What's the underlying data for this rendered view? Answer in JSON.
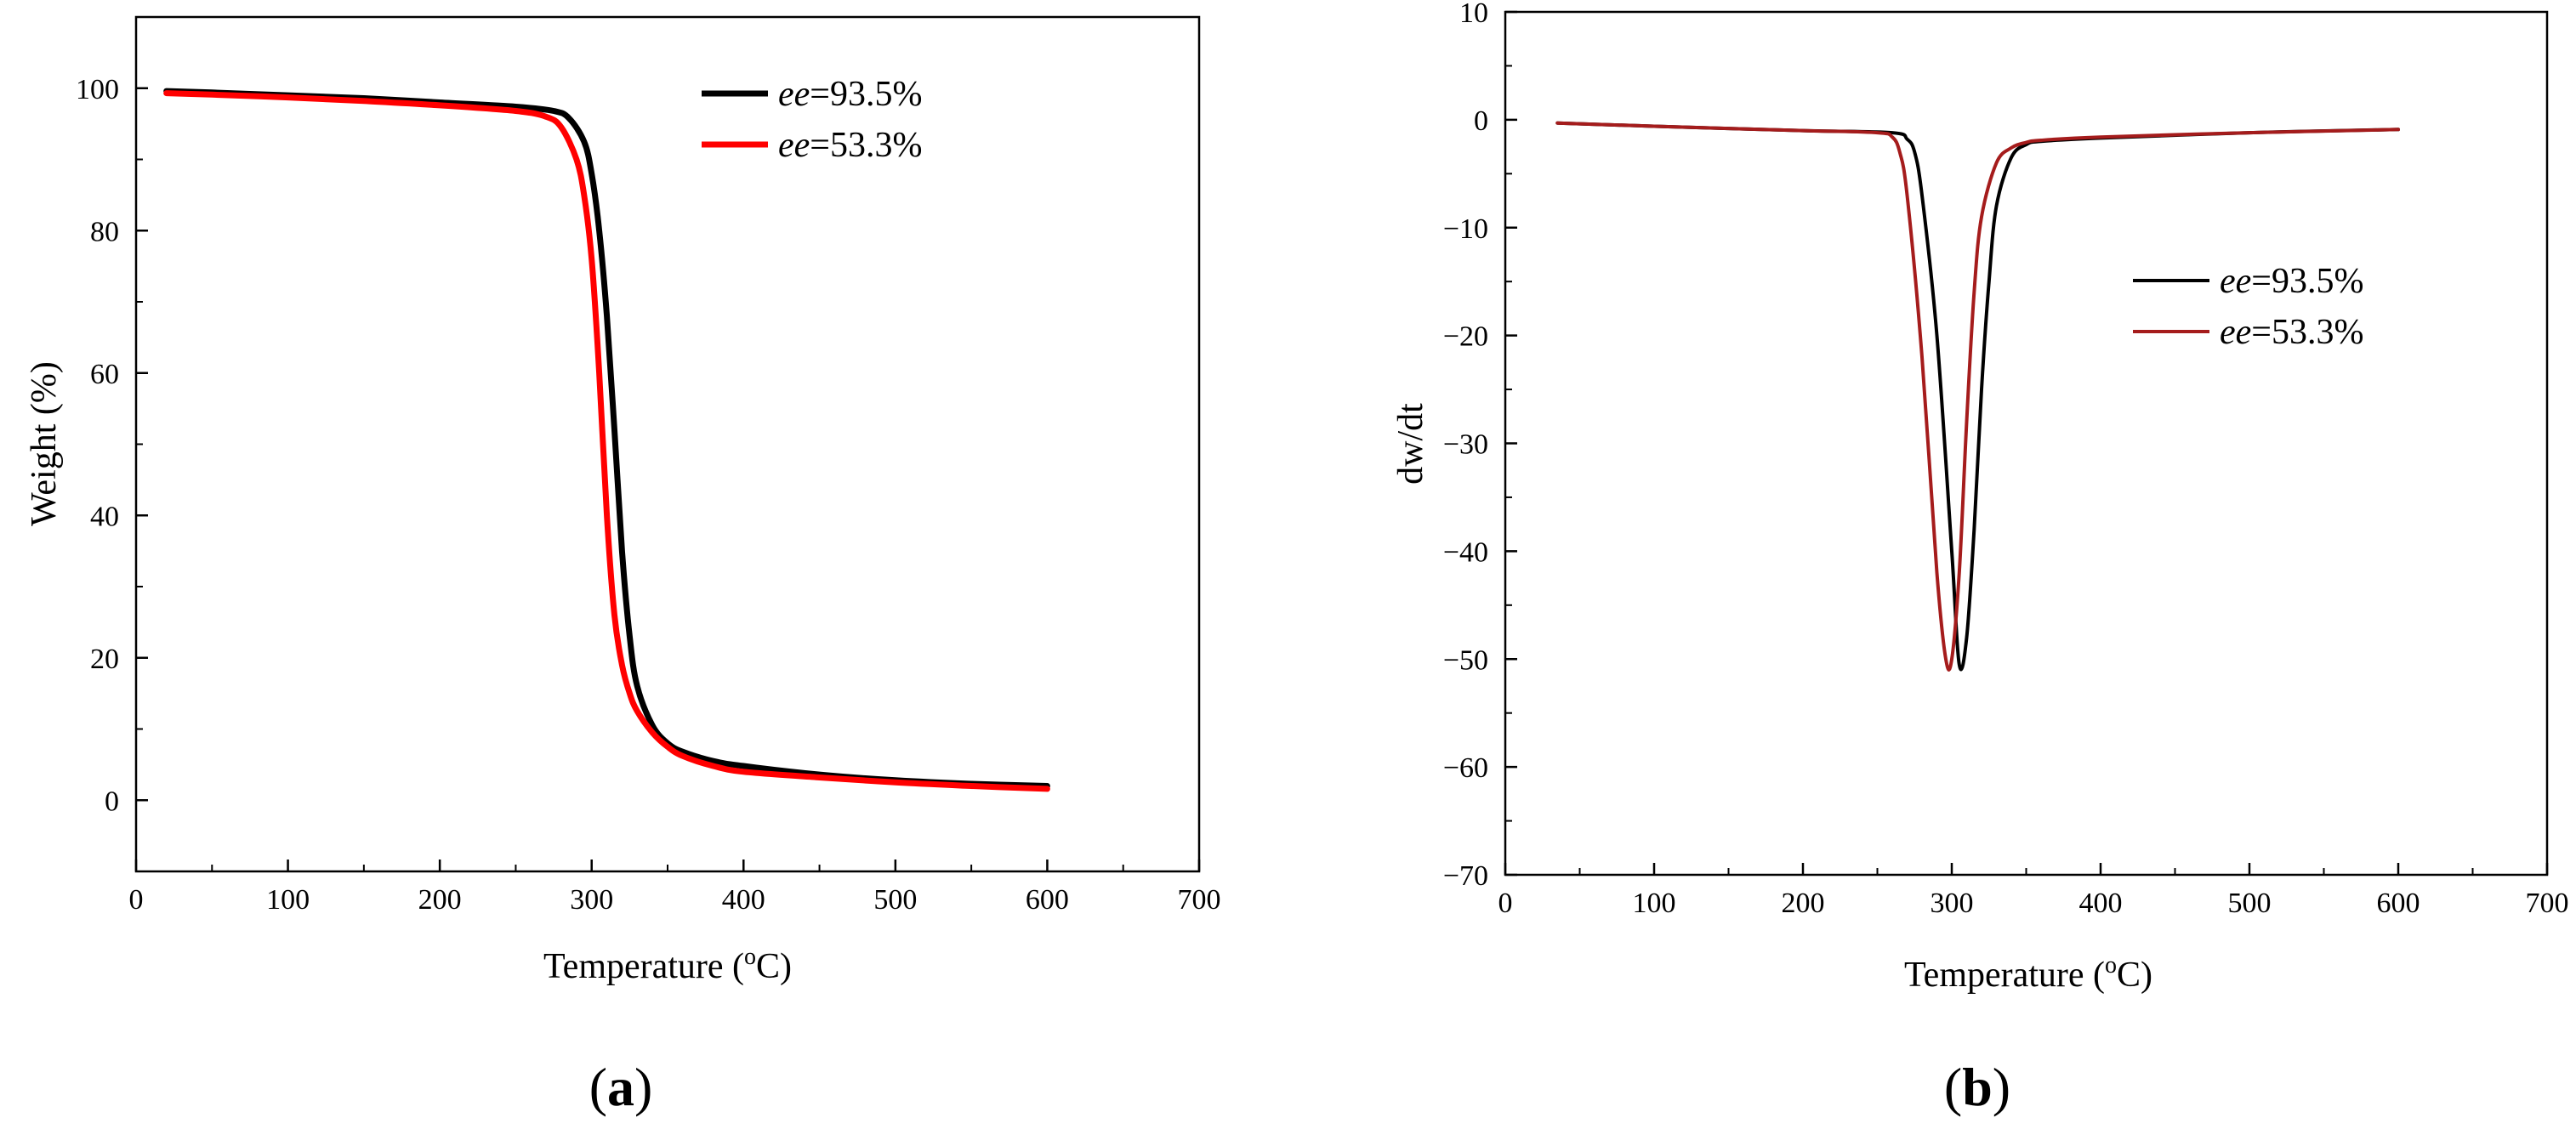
{
  "chart_data": [
    {
      "type": "line",
      "panel_label": "a",
      "xlabel": "Temperature (",
      "xlabel_sup": "o",
      "xlabel_tail": "C)",
      "ylabel": "Weight (%)",
      "xlim": [
        0,
        700
      ],
      "ylim": [
        -10,
        110
      ],
      "xticks": [
        0,
        100,
        200,
        300,
        400,
        500,
        600,
        700
      ],
      "yticks": [
        0,
        20,
        40,
        60,
        80,
        100
      ],
      "grid": false,
      "legend_position": "top-right",
      "series": [
        {
          "name": "ee=93.5%",
          "name_italic": "ee",
          "name_tail": "=93.5%",
          "color": "#000000",
          "x": [
            20,
            50,
            100,
            150,
            200,
            250,
            275,
            285,
            295,
            300,
            305,
            310,
            315,
            320,
            325,
            330,
            340,
            350,
            360,
            380,
            400,
            450,
            500,
            550,
            600
          ],
          "y": [
            99.6,
            99.4,
            99.0,
            98.6,
            98.0,
            97.4,
            96.8,
            95.8,
            92.5,
            88.0,
            80.0,
            68.0,
            52.0,
            35.0,
            23.0,
            16.0,
            10.5,
            8.0,
            6.8,
            5.5,
            4.8,
            3.6,
            2.8,
            2.3,
            2.0
          ]
        },
        {
          "name": "ee=53.3%",
          "name_italic": "ee",
          "name_tail": "=53.3%",
          "color": "#ff0000",
          "x": [
            20,
            50,
            100,
            150,
            200,
            250,
            270,
            280,
            290,
            295,
            300,
            305,
            310,
            315,
            320,
            325,
            330,
            340,
            350,
            360,
            380,
            400,
            450,
            500,
            550,
            600
          ],
          "y": [
            99.3,
            99.1,
            98.7,
            98.2,
            97.6,
            96.8,
            96.0,
            94.5,
            90.0,
            85.0,
            76.0,
            60.0,
            40.0,
            26.0,
            19.0,
            15.0,
            12.5,
            9.5,
            7.5,
            6.2,
            4.8,
            4.0,
            3.2,
            2.5,
            2.0,
            1.6
          ]
        }
      ]
    },
    {
      "type": "line",
      "panel_label": "b",
      "xlabel": "Temperature (",
      "xlabel_sup": "o",
      "xlabel_tail": "C)",
      "ylabel": "dw/dt",
      "xlim": [
        0,
        700
      ],
      "ylim": [
        -70,
        10
      ],
      "xticks": [
        0,
        100,
        200,
        300,
        400,
        500,
        600,
        700
      ],
      "yticks": [
        10,
        0,
        -10,
        -20,
        -30,
        -40,
        -50,
        -60,
        -70
      ],
      "ytick_labels": [
        "10",
        "0",
        "−10",
        "−20",
        "−30",
        "−40",
        "−50",
        "−60",
        "−70"
      ],
      "grid": false,
      "legend_position": "center-right",
      "series": [
        {
          "name": "ee=93.5%",
          "name_italic": "ee",
          "name_tail": "=93.5%",
          "color": "#000000",
          "x": [
            35,
            100,
            200,
            260,
            270,
            275,
            280,
            290,
            300,
            305,
            310,
            315,
            320,
            325,
            330,
            340,
            350,
            360,
            400,
            500,
            600
          ],
          "y": [
            -0.3,
            -0.6,
            -1.0,
            -1.2,
            -1.8,
            -3.0,
            -7.0,
            -20.0,
            -40.0,
            -50.5,
            -48.0,
            -38.0,
            -25.0,
            -15.0,
            -8.0,
            -3.5,
            -2.3,
            -2.0,
            -1.7,
            -1.2,
            -0.9
          ]
        },
        {
          "name": "ee=53.3%",
          "name_italic": "ee",
          "name_tail": "=53.3%",
          "color": "#a51c1c",
          "x": [
            35,
            100,
            200,
            250,
            260,
            265,
            270,
            280,
            290,
            296,
            300,
            305,
            310,
            315,
            320,
            330,
            340,
            350,
            360,
            400,
            500,
            600
          ],
          "y": [
            -0.3,
            -0.6,
            -1.0,
            -1.2,
            -1.6,
            -3.0,
            -7.0,
            -22.0,
            -42.0,
            -50.0,
            -50.0,
            -42.0,
            -28.0,
            -16.0,
            -9.0,
            -4.0,
            -2.6,
            -2.1,
            -1.9,
            -1.6,
            -1.2,
            -0.9
          ]
        }
      ]
    }
  ]
}
